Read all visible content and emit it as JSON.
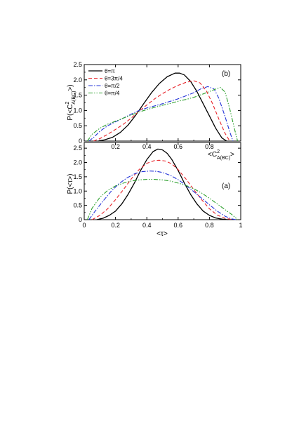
{
  "chart_data": [
    {
      "type": "line",
      "panel_tag": "(b)",
      "ylabel": "P(<C^2_A(BC)>)",
      "ylabel_parts": {
        "pre": "P(<C",
        "sup": "2",
        "sub": "A(BC)",
        "post": ">)"
      },
      "xlabel_parts": {
        "pre": "<C",
        "sup": "2",
        "sub": "A(BC)",
        "post": ">"
      },
      "xlim": [
        0,
        1
      ],
      "ylim": [
        0,
        2.5
      ],
      "xticks": [
        0.2,
        0.4,
        0.6,
        0.8
      ],
      "xtick_labels": [
        "0.2",
        "0.4",
        "0.6",
        "0.8"
      ],
      "yticks": [
        0,
        0.5,
        1.0,
        1.5,
        2.0,
        2.5
      ],
      "ytick_labels": [
        "0",
        "0.5",
        "1.0",
        "1.5",
        "2.0",
        "2.5"
      ],
      "legend_position": "top-left",
      "series": [
        {
          "name": "θ=π",
          "color": "#000000",
          "dash": "solid",
          "x": [
            0.09,
            0.13,
            0.18,
            0.23,
            0.28,
            0.33,
            0.38,
            0.43,
            0.48,
            0.53,
            0.58,
            0.61,
            0.64,
            0.68,
            0.72,
            0.76,
            0.8,
            0.84,
            0.88,
            0.91
          ],
          "y": [
            0,
            0.04,
            0.12,
            0.28,
            0.52,
            0.85,
            1.22,
            1.58,
            1.88,
            2.1,
            2.22,
            2.22,
            2.16,
            1.95,
            1.62,
            1.22,
            0.82,
            0.42,
            0.1,
            0
          ]
        },
        {
          "name": "θ=3π/4",
          "color": "#e8242a",
          "dash": "dashed",
          "x": [
            0.06,
            0.1,
            0.15,
            0.2,
            0.25,
            0.3,
            0.35,
            0.4,
            0.45,
            0.5,
            0.55,
            0.6,
            0.65,
            0.7,
            0.74,
            0.78,
            0.82,
            0.86,
            0.9,
            0.93
          ],
          "y": [
            0,
            0.08,
            0.22,
            0.38,
            0.55,
            0.75,
            0.98,
            1.18,
            1.38,
            1.55,
            1.7,
            1.82,
            1.92,
            1.97,
            1.9,
            1.65,
            1.22,
            0.72,
            0.25,
            0
          ]
        },
        {
          "name": "θ=π/2",
          "color": "#2434d8",
          "dash": "dashdot",
          "x": [
            0.03,
            0.06,
            0.1,
            0.15,
            0.2,
            0.25,
            0.3,
            0.35,
            0.4,
            0.45,
            0.5,
            0.55,
            0.6,
            0.65,
            0.7,
            0.75,
            0.79,
            0.83,
            0.86,
            0.9,
            0.93,
            0.95
          ],
          "y": [
            0,
            0.12,
            0.32,
            0.5,
            0.63,
            0.75,
            0.88,
            1.0,
            1.08,
            1.15,
            1.22,
            1.3,
            1.38,
            1.48,
            1.58,
            1.72,
            1.78,
            1.7,
            1.4,
            0.8,
            0.3,
            0
          ]
        },
        {
          "name": "θ=π/4",
          "color": "#2ea02e",
          "dash": "dashdotdot",
          "x": [
            0.02,
            0.05,
            0.1,
            0.15,
            0.2,
            0.25,
            0.3,
            0.35,
            0.4,
            0.45,
            0.5,
            0.55,
            0.6,
            0.65,
            0.7,
            0.75,
            0.8,
            0.84,
            0.87,
            0.9,
            0.93,
            0.96,
            0.98
          ],
          "y": [
            0,
            0.22,
            0.42,
            0.55,
            0.65,
            0.75,
            0.85,
            0.95,
            1.03,
            1.1,
            1.17,
            1.23,
            1.3,
            1.36,
            1.43,
            1.52,
            1.62,
            1.7,
            1.75,
            1.6,
            1.05,
            0.4,
            0
          ]
        }
      ]
    },
    {
      "type": "line",
      "panel_tag": "(a)",
      "ylabel": "P(<τ>)",
      "xlabel": "<τ>",
      "xlim": [
        0,
        1
      ],
      "ylim": [
        0,
        2.7
      ],
      "xticks": [
        0,
        0.2,
        0.4,
        0.6,
        0.8,
        1
      ],
      "xtick_labels": [
        "0",
        "0.2",
        "0.4",
        "0.6",
        "0.8",
        "1"
      ],
      "yticks": [
        0,
        0.5,
        1.0,
        1.5,
        2.0,
        2.5
      ],
      "ytick_labels": [
        "0",
        "0.5",
        "1.0",
        "1.5",
        "2.0",
        "2.5"
      ],
      "series": [
        {
          "name": "θ=π",
          "color": "#000000",
          "dash": "solid",
          "x": [
            0.08,
            0.12,
            0.16,
            0.2,
            0.24,
            0.28,
            0.32,
            0.36,
            0.4,
            0.44,
            0.47,
            0.5,
            0.53,
            0.56,
            0.6,
            0.64,
            0.68,
            0.72,
            0.76,
            0.8,
            0.84,
            0.88,
            0.92
          ],
          "y": [
            0,
            0.05,
            0.15,
            0.3,
            0.55,
            0.88,
            1.28,
            1.72,
            2.1,
            2.38,
            2.47,
            2.44,
            2.32,
            2.1,
            1.72,
            1.28,
            0.88,
            0.55,
            0.3,
            0.15,
            0.06,
            0.02,
            0
          ]
        },
        {
          "name": "θ=3π/4",
          "color": "#e8242a",
          "dash": "dashed",
          "x": [
            0.05,
            0.1,
            0.15,
            0.2,
            0.25,
            0.3,
            0.35,
            0.4,
            0.45,
            0.48,
            0.52,
            0.56,
            0.6,
            0.65,
            0.7,
            0.75,
            0.8,
            0.85,
            0.9,
            0.95
          ],
          "y": [
            0,
            0.15,
            0.38,
            0.7,
            1.05,
            1.42,
            1.75,
            1.97,
            2.07,
            2.08,
            2.05,
            1.95,
            1.75,
            1.42,
            1.05,
            0.7,
            0.38,
            0.16,
            0.05,
            0
          ]
        },
        {
          "name": "θ=π/2",
          "color": "#2434d8",
          "dash": "dashdot",
          "x": [
            0.03,
            0.07,
            0.12,
            0.17,
            0.22,
            0.27,
            0.32,
            0.37,
            0.42,
            0.46,
            0.5,
            0.55,
            0.6,
            0.65,
            0.7,
            0.75,
            0.8,
            0.85,
            0.9,
            0.94,
            0.97
          ],
          "y": [
            0,
            0.3,
            0.65,
            0.98,
            1.25,
            1.45,
            1.6,
            1.68,
            1.7,
            1.69,
            1.65,
            1.55,
            1.4,
            1.2,
            0.98,
            0.75,
            0.52,
            0.3,
            0.12,
            0.03,
            0
          ]
        },
        {
          "name": "θ=π/4",
          "color": "#2ea02e",
          "dash": "dashdotdot",
          "x": [
            0.02,
            0.05,
            0.1,
            0.15,
            0.2,
            0.25,
            0.3,
            0.35,
            0.4,
            0.45,
            0.5,
            0.55,
            0.6,
            0.65,
            0.7,
            0.75,
            0.8,
            0.85,
            0.9,
            0.95,
            0.98
          ],
          "y": [
            0,
            0.4,
            0.78,
            1.02,
            1.18,
            1.28,
            1.35,
            1.39,
            1.41,
            1.41,
            1.39,
            1.35,
            1.28,
            1.2,
            1.08,
            0.93,
            0.75,
            0.55,
            0.35,
            0.15,
            0
          ]
        }
      ]
    }
  ]
}
